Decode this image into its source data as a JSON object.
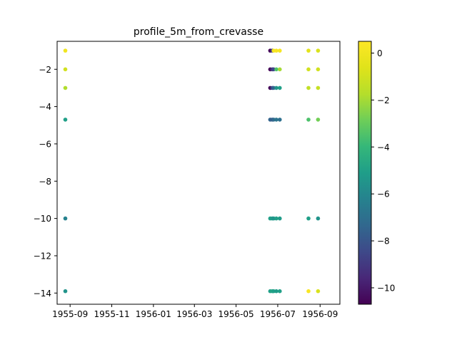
{
  "chart_data": {
    "type": "scatter",
    "title": "profile_5m_from_crevasse",
    "xlabel": "",
    "ylabel": "",
    "x_axis": {
      "type": "date",
      "range": [
        "1955-08-13",
        "1956-09-30"
      ],
      "ticks": [
        {
          "date": "1955-09-01",
          "label": "1955-09"
        },
        {
          "date": "1955-11-01",
          "label": "1955-11"
        },
        {
          "date": "1956-01-01",
          "label": "1956-01"
        },
        {
          "date": "1956-03-01",
          "label": "1956-03"
        },
        {
          "date": "1956-05-01",
          "label": "1956-05"
        },
        {
          "date": "1956-07-01",
          "label": "1956-07"
        },
        {
          "date": "1956-09-01",
          "label": "1956-09"
        }
      ]
    },
    "y_axis": {
      "range": [
        -14.6,
        -0.5
      ],
      "ticks": [
        -14,
        -12,
        -10,
        -8,
        -6,
        -4,
        -2
      ]
    },
    "colorbar": {
      "colormap": "viridis",
      "range": [
        -10.7,
        0.5
      ],
      "ticks": [
        -10,
        -8,
        -6,
        -4,
        -2,
        0
      ]
    },
    "grid": false,
    "points": [
      {
        "x": "1955-08-25",
        "y": -1,
        "v": 0.0
      },
      {
        "x": "1955-08-25",
        "y": -2,
        "v": -1.0
      },
      {
        "x": "1955-08-25",
        "y": -3,
        "v": -1.8
      },
      {
        "x": "1955-08-25",
        "y": -4.7,
        "v": -5.0
      },
      {
        "x": "1955-08-25",
        "y": -10,
        "v": -6.2
      },
      {
        "x": "1955-08-25",
        "y": -13.9,
        "v": -5.5
      },
      {
        "x": "1956-06-20",
        "y": -1,
        "v": -10.5
      },
      {
        "x": "1956-06-20",
        "y": -2,
        "v": -10.5
      },
      {
        "x": "1956-06-20",
        "y": -3,
        "v": -10.5
      },
      {
        "x": "1956-06-20",
        "y": -4.7,
        "v": -7.5
      },
      {
        "x": "1956-06-20",
        "y": -10,
        "v": -5.0
      },
      {
        "x": "1956-06-20",
        "y": -13.9,
        "v": -5.0
      },
      {
        "x": "1956-06-23",
        "y": -1,
        "v": -9.0
      },
      {
        "x": "1956-06-23",
        "y": -2,
        "v": -9.2
      },
      {
        "x": "1956-06-23",
        "y": -3,
        "v": -8.5
      },
      {
        "x": "1956-06-23",
        "y": -4.7,
        "v": -7.8
      },
      {
        "x": "1956-06-23",
        "y": -10,
        "v": -5.2
      },
      {
        "x": "1956-06-23",
        "y": -13.9,
        "v": -4.8
      },
      {
        "x": "1956-06-25",
        "y": -1,
        "v": 0.2
      },
      {
        "x": "1956-06-25",
        "y": -2,
        "v": -8.5
      },
      {
        "x": "1956-06-25",
        "y": -3,
        "v": -7.5
      },
      {
        "x": "1956-06-25",
        "y": -4.7,
        "v": -7.2
      },
      {
        "x": "1956-06-25",
        "y": -10,
        "v": -5.5
      },
      {
        "x": "1956-06-25",
        "y": -13.9,
        "v": -5.0
      },
      {
        "x": "1956-06-29",
        "y": -1,
        "v": 0.3
      },
      {
        "x": "1956-06-29",
        "y": -2,
        "v": -3.5
      },
      {
        "x": "1956-06-29",
        "y": -3,
        "v": -5.5
      },
      {
        "x": "1956-06-29",
        "y": -4.7,
        "v": -6.8
      },
      {
        "x": "1956-06-29",
        "y": -10,
        "v": -5.0
      },
      {
        "x": "1956-06-29",
        "y": -13.9,
        "v": -5.2
      },
      {
        "x": "1956-07-04",
        "y": -1,
        "v": 0.2
      },
      {
        "x": "1956-07-04",
        "y": -2,
        "v": -2.0
      },
      {
        "x": "1956-07-04",
        "y": -3,
        "v": -5.0
      },
      {
        "x": "1956-07-04",
        "y": -4.7,
        "v": -7.0
      },
      {
        "x": "1956-07-04",
        "y": -10,
        "v": -5.2
      },
      {
        "x": "1956-07-04",
        "y": -13.9,
        "v": -5.0
      },
      {
        "x": "1956-08-15",
        "y": -1,
        "v": -0.5
      },
      {
        "x": "1956-08-15",
        "y": -2,
        "v": -1.0
      },
      {
        "x": "1956-08-15",
        "y": -3,
        "v": -1.4
      },
      {
        "x": "1956-08-15",
        "y": -4.7,
        "v": -3.5
      },
      {
        "x": "1956-08-15",
        "y": -10,
        "v": -5.0
      },
      {
        "x": "1956-08-15",
        "y": -13.9,
        "v": 0.3
      },
      {
        "x": "1956-08-29",
        "y": -1,
        "v": -0.8
      },
      {
        "x": "1956-08-29",
        "y": -2,
        "v": -1.0
      },
      {
        "x": "1956-08-29",
        "y": -3,
        "v": -1.3
      },
      {
        "x": "1956-08-29",
        "y": -4.7,
        "v": -2.8
      },
      {
        "x": "1956-08-29",
        "y": -10,
        "v": -5.5
      },
      {
        "x": "1956-08-29",
        "y": -13.9,
        "v": -0.8
      }
    ]
  }
}
